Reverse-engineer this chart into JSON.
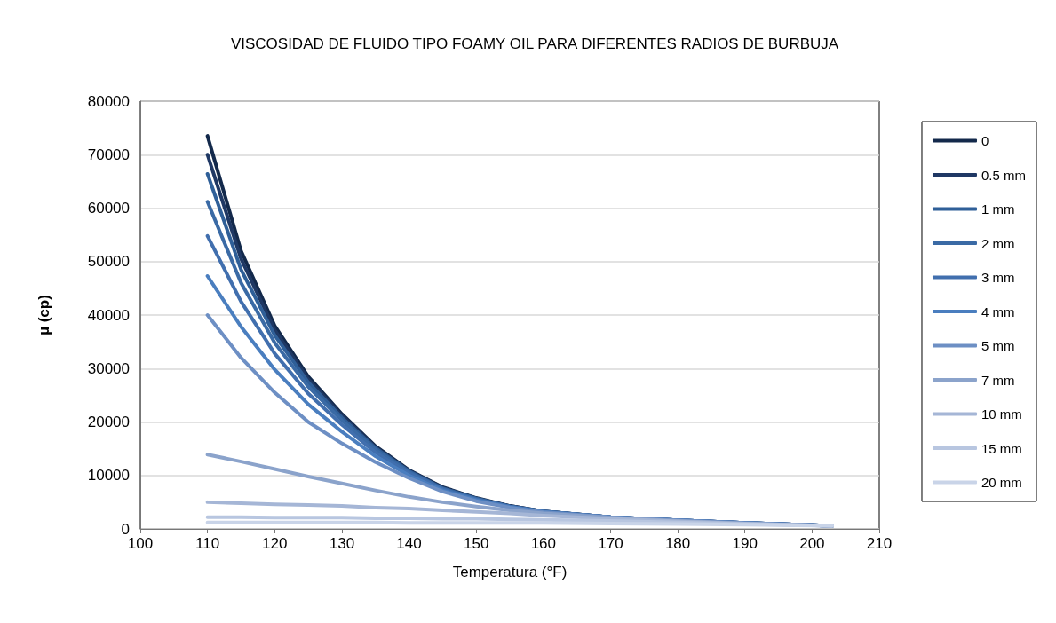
{
  "chart_data": {
    "type": "line",
    "title": "VISCOSIDAD DE FLUIDO TIPO FOAMY OIL PARA DIFERENTES RADIOS DE BURBUJA",
    "xlabel": "Temperatura (°F)",
    "ylabel": "µ (cp)",
    "x": [
      110,
      115,
      120,
      125,
      130,
      135,
      140,
      145,
      150,
      155,
      160,
      170,
      180,
      190,
      203
    ],
    "xlim": [
      100,
      210
    ],
    "xticks": [
      100,
      110,
      120,
      130,
      140,
      150,
      160,
      170,
      180,
      190,
      200,
      210
    ],
    "ylim": [
      0,
      80000
    ],
    "yticks": [
      0,
      10000,
      20000,
      30000,
      40000,
      50000,
      60000,
      70000,
      80000
    ],
    "grid": "y",
    "legend": "right",
    "marker": "none",
    "line_style": "solid",
    "series": [
      {
        "name": "0",
        "color": "#13294b",
        "values": [
          73500,
          52000,
          38000,
          28500,
          21500,
          15500,
          11000,
          7800,
          5800,
          4300,
          3300,
          2200,
          1600,
          1100,
          600
        ]
      },
      {
        "name": "0.5 mm",
        "color": "#1f3864",
        "values": [
          70000,
          50500,
          37200,
          28000,
          21200,
          15300,
          10900,
          7700,
          5700,
          4300,
          3300,
          2200,
          1600,
          1100,
          600
        ]
      },
      {
        "name": "1 mm",
        "color": "#2f5f98",
        "values": [
          66400,
          48500,
          36200,
          27400,
          20800,
          15100,
          10800,
          7600,
          5700,
          4200,
          3300,
          2200,
          1600,
          1100,
          600
        ]
      },
      {
        "name": "2 mm",
        "color": "#3a6aa5",
        "values": [
          61200,
          46000,
          34800,
          26600,
          20300,
          14800,
          10600,
          7500,
          5600,
          4200,
          3300,
          2200,
          1600,
          1100,
          600
        ]
      },
      {
        "name": "3 mm",
        "color": "#416fae",
        "values": [
          54800,
          42500,
          32800,
          25300,
          19500,
          14300,
          10400,
          7400,
          5500,
          4200,
          3200,
          2200,
          1600,
          1100,
          600
        ]
      },
      {
        "name": "4 mm",
        "color": "#4a7ebf",
        "values": [
          47300,
          37800,
          29800,
          23300,
          18200,
          13600,
          10000,
          7200,
          5400,
          4100,
          3200,
          2200,
          1600,
          1100,
          600
        ]
      },
      {
        "name": "5 mm",
        "color": "#6d8fc4",
        "values": [
          40000,
          32000,
          25500,
          20000,
          16000,
          12500,
          9500,
          7000,
          5200,
          4000,
          3100,
          2200,
          1600,
          1100,
          600
        ]
      },
      {
        "name": "7 mm",
        "color": "#8ba3cb",
        "values": [
          13900,
          12600,
          11200,
          9800,
          8500,
          7200,
          6000,
          5000,
          4200,
          3500,
          2900,
          2100,
          1500,
          1000,
          600
        ]
      },
      {
        "name": "10 mm",
        "color": "#a5b6d6",
        "values": [
          5000,
          4800,
          4600,
          4500,
          4300,
          4000,
          3800,
          3500,
          3200,
          2900,
          2500,
          1900,
          1400,
          1000,
          600
        ]
      },
      {
        "name": "15 mm",
        "color": "#b8c6e0",
        "values": [
          2200,
          2200,
          2100,
          2100,
          2100,
          2000,
          2000,
          1900,
          1900,
          1800,
          1700,
          1500,
          1200,
          900,
          600
        ]
      },
      {
        "name": "20 mm",
        "color": "#c9d4e8",
        "values": [
          1200,
          1200,
          1200,
          1200,
          1200,
          1200,
          1100,
          1100,
          1100,
          1100,
          1100,
          1000,
          900,
          800,
          600
        ]
      }
    ]
  }
}
